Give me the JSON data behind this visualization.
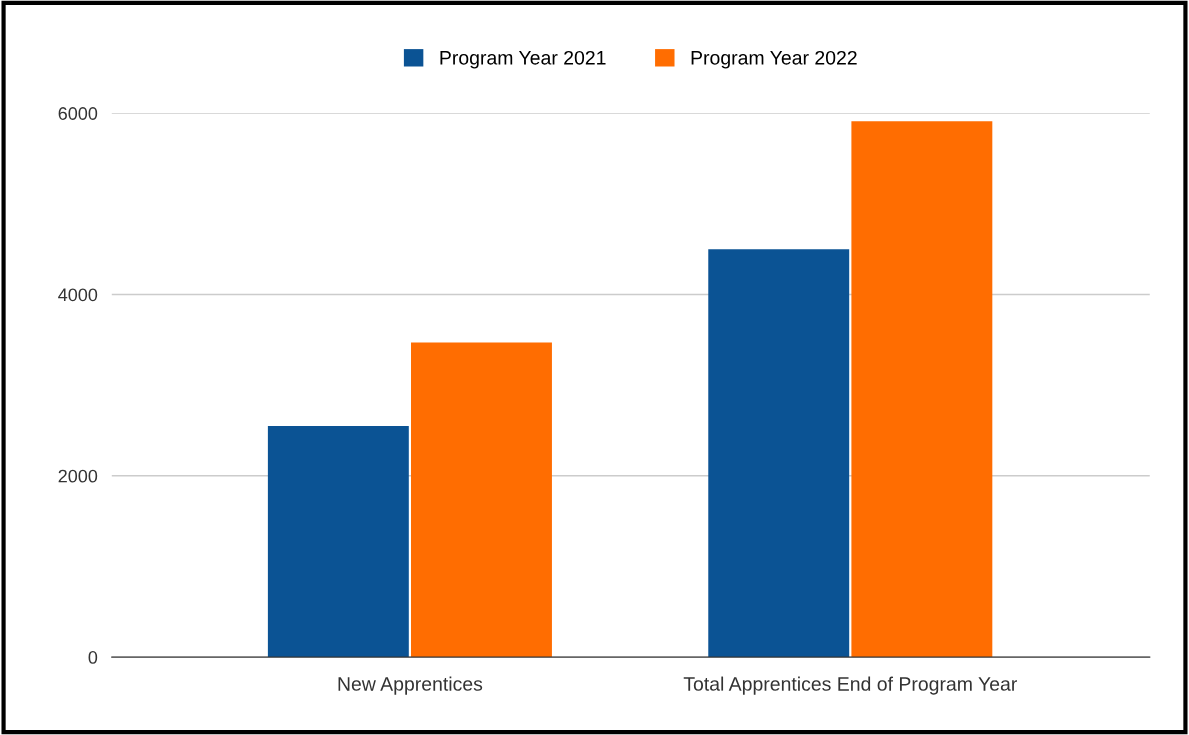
{
  "chart_data": {
    "type": "bar",
    "categories": [
      "New Apprentices",
      "Total Apprentices End of Program Year"
    ],
    "series": [
      {
        "name": "Program Year 2021",
        "color": "#0b5394",
        "values": [
          2550,
          4500
        ]
      },
      {
        "name": "Program Year 2022",
        "color": "#ff6d01",
        "values": [
          3470,
          5910
        ]
      }
    ],
    "ylim": [
      0,
      6000
    ],
    "yticks": [
      0,
      2000,
      4000,
      6000
    ],
    "grid": "y",
    "legend": "top"
  }
}
